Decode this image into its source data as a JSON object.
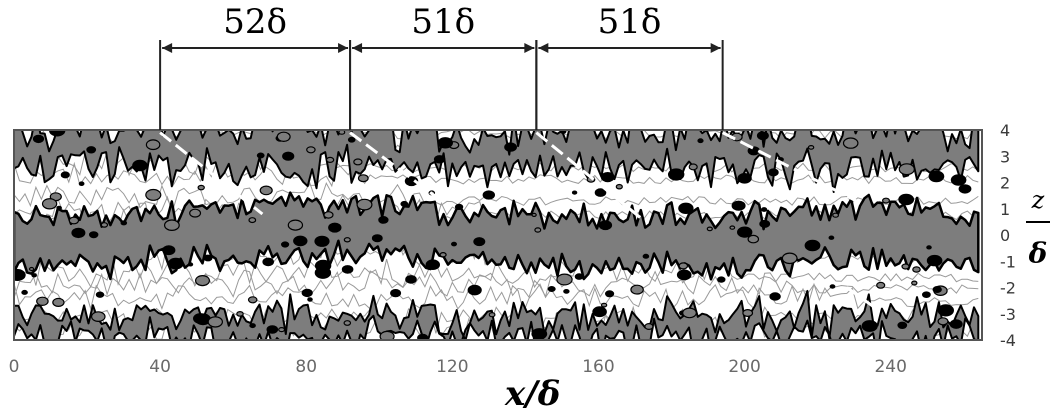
{
  "chart_data": {
    "type": "heatmap",
    "description_kind": "contour plot of streamwise velocity fluctuation with spanwise-periodic streaks",
    "xlabel": "x/δ",
    "ylabel": "z/δ",
    "xlim": [
      0,
      265
    ],
    "ylim": [
      -4,
      4
    ],
    "x_ticks": [
      "0",
      "40",
      "80",
      "120",
      "160",
      "200",
      "240"
    ],
    "z_ticks": [
      "4",
      "3",
      "2",
      "1",
      "0",
      "-1",
      "-2",
      "-3",
      "-4"
    ],
    "spacing_annotations": [
      {
        "label": "52δ",
        "x_start": 40,
        "x_end": 92
      },
      {
        "label": "51δ",
        "x_start": 92,
        "x_end": 143
      },
      {
        "label": "51δ",
        "x_start": 143,
        "x_end": 194
      }
    ],
    "gray_band_center_z": [
      {
        "x": 0,
        "z": -0.3
      },
      {
        "x": 40,
        "z": -0.1
      },
      {
        "x": 80,
        "z": 0.3
      },
      {
        "x": 120,
        "z": 0.0
      },
      {
        "x": 160,
        "z": -0.3
      },
      {
        "x": 200,
        "z": -0.2
      },
      {
        "x": 240,
        "z": 0.1
      },
      {
        "x": 265,
        "z": -0.3
      }
    ],
    "colors": {
      "negative": "#7d7d7d",
      "contour": "#000000",
      "faint_contour": "#9a9a9a",
      "background": "#ffffff"
    }
  }
}
